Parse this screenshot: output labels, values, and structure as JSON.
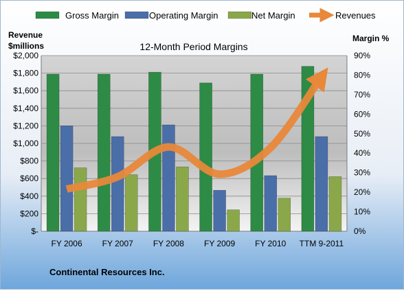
{
  "chart_data": {
    "type": "bar",
    "title": "12-Month Period Margins",
    "company": "Continental Resources Inc.",
    "left_axis_label": [
      "Revenue",
      "$millions"
    ],
    "right_axis_label": "Margin %",
    "categories": [
      "FY 2006",
      "FY 2007",
      "FY 2008",
      "FY 2009",
      "FY 2010",
      "TTM 9-2011"
    ],
    "series": [
      {
        "name": "Gross Margin",
        "kind": "bar",
        "axis": "right",
        "color": "#2e8b45",
        "values": [
          80.5,
          80.5,
          81.5,
          76,
          80.5,
          84.5
        ]
      },
      {
        "name": "Operating Margin",
        "kind": "bar",
        "axis": "right",
        "color": "#4a6ea8",
        "values": [
          54,
          48.5,
          54.5,
          21,
          28.5,
          48.5
        ]
      },
      {
        "name": "Net Margin",
        "kind": "bar",
        "axis": "right",
        "color": "#8aa84a",
        "values": [
          32.5,
          29,
          33,
          11,
          17,
          28
        ]
      },
      {
        "name": "Revenues",
        "kind": "line",
        "axis": "left",
        "color": "#e8883a",
        "values": [
          480,
          620,
          960,
          650,
          950,
          1760
        ]
      }
    ],
    "left_axis": {
      "min": 0,
      "max": 2000,
      "step": 200,
      "tick_labels": [
        "$-",
        "$200",
        "$400",
        "$600",
        "$800",
        "$1,000",
        "$1,200",
        "$1,400",
        "$1,600",
        "$1,800",
        "$2,000"
      ]
    },
    "right_axis": {
      "min": 0,
      "max": 90,
      "step": 10,
      "tick_labels": [
        "0%",
        "10%",
        "20%",
        "30%",
        "40%",
        "50%",
        "60%",
        "70%",
        "80%",
        "90%"
      ]
    },
    "legend_position": "top",
    "grid": true
  }
}
